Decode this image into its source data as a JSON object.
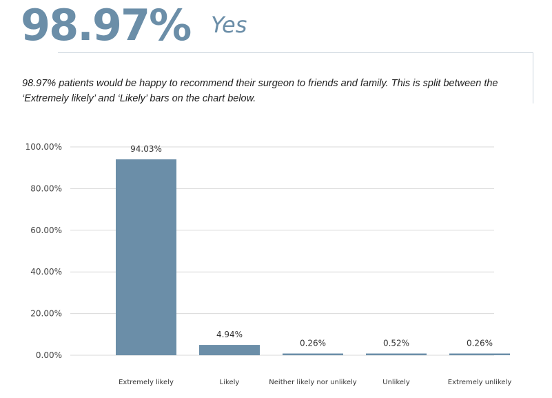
{
  "header": {
    "stat": "98.97%",
    "label": "Yes"
  },
  "summary": "98.97% patients would be happy to recommend their surgeon to friends and family. This is split between the ‘Extremely likely’ and ‘Likely’ bars on the chart below.",
  "colors": {
    "accent": "#6b8ea8",
    "bar": "#6b8ea8",
    "grid": "#d9d9d9"
  },
  "chart_data": {
    "type": "bar",
    "categories": [
      "Extremely likely",
      "Likely",
      "Neither likely nor unlikely",
      "Unlikely",
      "Extremely unlikely"
    ],
    "values": [
      94.03,
      4.94,
      0.26,
      0.52,
      0.26
    ],
    "data_labels": [
      "94.03%",
      "4.94%",
      "0.26%",
      "0.52%",
      "0.26%"
    ],
    "y_ticks": [
      "0.00%",
      "20.00%",
      "40.00%",
      "60.00%",
      "80.00%",
      "100.00%"
    ],
    "ylim": [
      0,
      100
    ],
    "grid": true,
    "legend": "none"
  }
}
